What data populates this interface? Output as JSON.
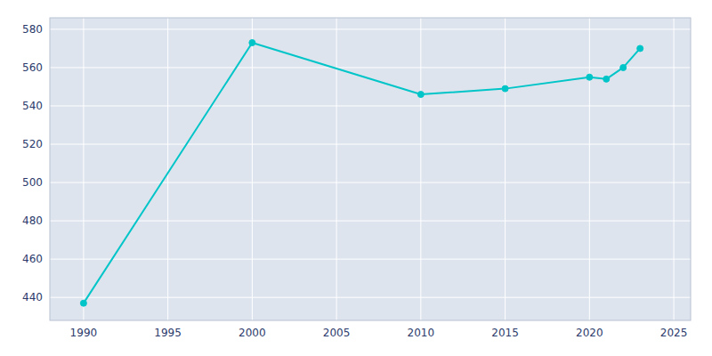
{
  "chart_data": {
    "type": "line",
    "x": [
      1990,
      2000,
      2010,
      2015,
      2020,
      2021,
      2022,
      2023
    ],
    "values": [
      437,
      573,
      546,
      549,
      555,
      554,
      560,
      570
    ],
    "color": "#00C5C8",
    "marker": "circle",
    "xlim": [
      1988,
      2026
    ],
    "ylim": [
      428,
      586
    ],
    "xticks": [
      1990,
      1995,
      2000,
      2005,
      2010,
      2015,
      2020,
      2025
    ],
    "yticks": [
      440,
      460,
      480,
      500,
      520,
      540,
      560,
      580
    ],
    "grid": true
  }
}
